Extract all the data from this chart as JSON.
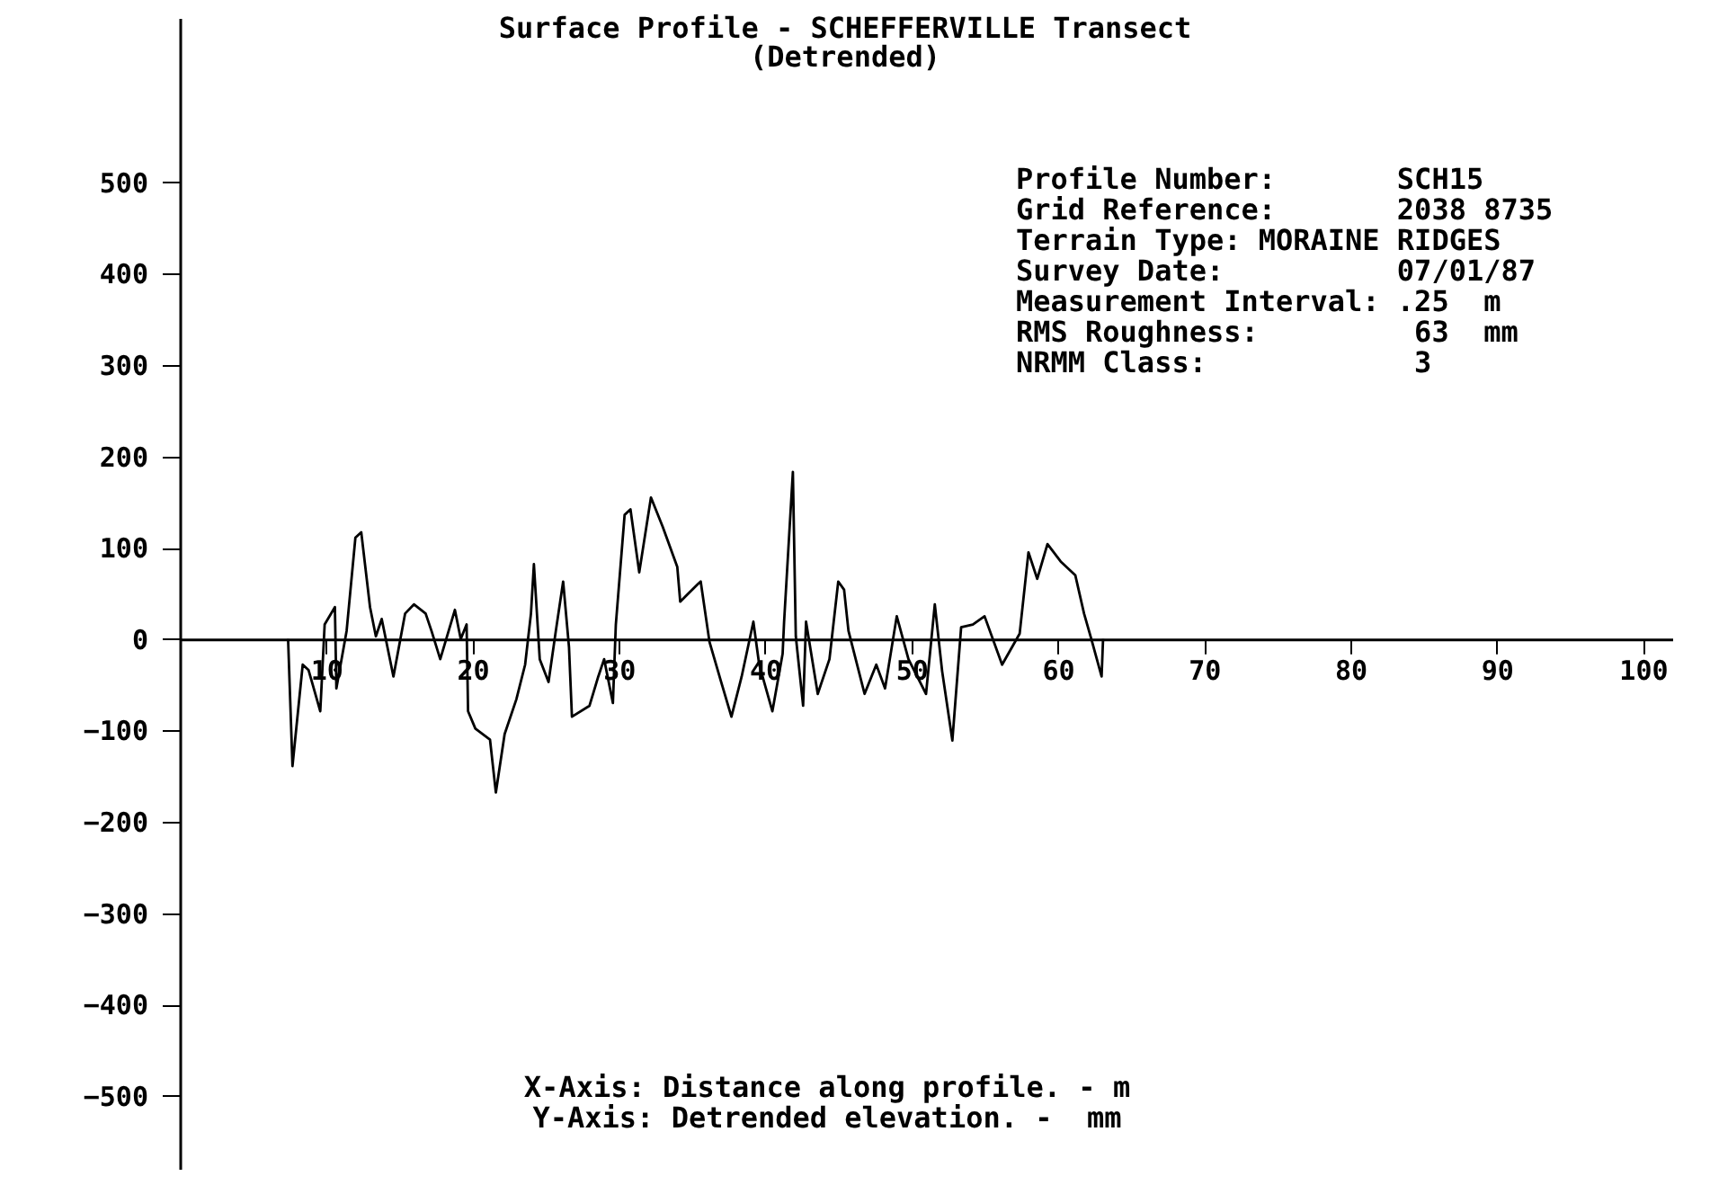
{
  "chart_data": {
    "type": "line",
    "title": "Surface Profile - SCHEFFERVILLE Transect",
    "subtitle": "(Detrended)",
    "xlabel": "X-Axis: Distance along profile. - m",
    "ylabel": "Y-Axis: Detrended elevation. -  mm",
    "annotations": [
      "Profile Number:       SCH15",
      "Grid Reference:       2038 8735",
      "Terrain Type: MORAINE RIDGES",
      "Survey Date:          07/01/87",
      "Measurement Interval: .25  m",
      "RMS Roughness:         63  mm",
      "NRMM Class:            3"
    ],
    "series": [
      {
        "color": "#000000",
        "x": [
          7.4,
          7.7,
          8.4,
          8.8,
          9.6,
          9.9,
          10.6,
          10.7,
          11.4,
          12.0,
          12.4,
          13.0,
          13.4,
          13.8,
          14.6,
          15.4,
          16.0,
          16.8,
          17.2,
          17.8,
          18.8,
          19.2,
          19.6,
          19.7,
          20.2,
          21.2,
          21.6,
          22.2,
          23.0,
          23.6,
          24.0,
          24.2,
          24.6,
          25.2,
          25.7,
          26.2,
          26.6,
          26.8,
          28.0,
          28.6,
          29.0,
          29.6,
          29.8,
          30.4,
          30.8,
          31.4,
          32.2,
          33.0,
          34.0,
          34.2,
          35.4,
          35.6,
          36.2,
          37.0,
          37.7,
          38.4,
          39.2,
          39.6,
          40.5,
          41.2,
          41.3,
          41.9,
          42.1,
          42.6,
          42.8,
          43.6,
          44.4,
          45.0,
          45.4,
          45.7,
          46.8,
          47.6,
          48.2,
          49.0,
          49.8,
          51.0,
          51.6,
          52.1,
          52.8,
          53.4,
          54.2,
          55.0,
          56.2,
          57.4,
          58.0,
          58.6,
          59.3,
          60.2,
          61.2,
          61.8,
          62.3,
          63.0,
          63.1
        ],
        "values": [
          0,
          -139,
          -28,
          -34,
          -79,
          16,
          35,
          -54,
          9,
          111,
          117,
          35,
          3,
          22,
          -41,
          28,
          38,
          28,
          9,
          -22,
          32,
          0,
          16,
          -79,
          -98,
          -110,
          -168,
          -104,
          -66,
          -28,
          28,
          82,
          -22,
          -47,
          9,
          63,
          -9,
          -85,
          -73,
          -41,
          -22,
          -70,
          16,
          136,
          142,
          73,
          155,
          123,
          79,
          41,
          60,
          63,
          -3,
          -47,
          -85,
          -41,
          19,
          -28,
          -79,
          -16,
          19,
          183,
          3,
          -73,
          19,
          -60,
          -22,
          63,
          54,
          9,
          -60,
          -28,
          -54,
          25,
          -22,
          -60,
          38,
          -35,
          -111,
          13,
          16,
          25,
          -28,
          6,
          95,
          66,
          104,
          85,
          70,
          28,
          0,
          -41,
          0
        ]
      }
    ],
    "xlim": [
      0,
      102
    ],
    "ylim": [
      -580,
      680
    ],
    "xticks": [
      10,
      20,
      30,
      40,
      50,
      60,
      70,
      80,
      90,
      100
    ],
    "yticks": [
      -500,
      -400,
      -300,
      -200,
      -100,
      0,
      100,
      200,
      300,
      400,
      500
    ],
    "grid": false
  }
}
